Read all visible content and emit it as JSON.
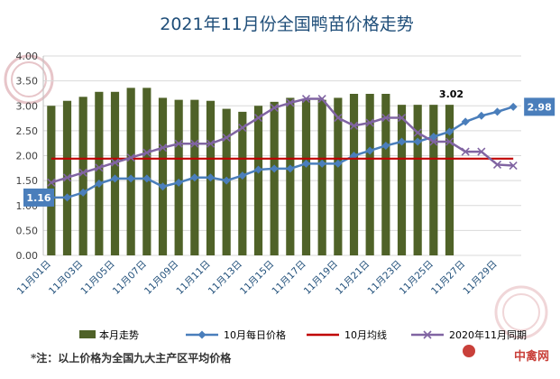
{
  "chart_data": {
    "type": "bar+line",
    "title": "2021年11月份全国鸭苗价格走势",
    "categories": [
      "11月01日",
      "11月02日",
      "11月03日",
      "11月04日",
      "11月05日",
      "11月06日",
      "11月07日",
      "11月08日",
      "11月09日",
      "11月10日",
      "11月11日",
      "11月12日",
      "11月13日",
      "11月14日",
      "11月15日",
      "11月16日",
      "11月17日",
      "11月18日",
      "11月19日",
      "11月20日",
      "11月21日",
      "11月22日",
      "11月23日",
      "11月24日",
      "11月25日",
      "11月26日",
      "11月27日",
      "11月28日",
      "11月29日",
      "11月30日"
    ],
    "x_tick_labels": [
      "11月01日",
      "11月03日",
      "11月05日",
      "11月07日",
      "11月09日",
      "11月11日",
      "11月13日",
      "11月15日",
      "11月17日",
      "11月19日",
      "11月21日",
      "11月23日",
      "11月25日",
      "11月27日",
      "11月29日"
    ],
    "ylim": [
      0,
      4
    ],
    "y_ticks": [
      "0.00",
      "0.50",
      "1.00",
      "1.50",
      "2.00",
      "2.50",
      "3.00",
      "3.50",
      "4.00"
    ],
    "grid": true,
    "legend_position": "bottom",
    "series": [
      {
        "name": "本月走势",
        "kind": "bar",
        "color": "#4f6228",
        "values": [
          3.0,
          3.1,
          3.18,
          3.28,
          3.28,
          3.36,
          3.36,
          3.16,
          3.12,
          3.12,
          3.1,
          2.94,
          2.88,
          3.0,
          3.08,
          3.16,
          3.12,
          3.12,
          3.16,
          3.24,
          3.24,
          3.24,
          3.02,
          3.02,
          3.02,
          3.02,
          null,
          null,
          null,
          null
        ]
      },
      {
        "name": "10月每日价格",
        "kind": "line",
        "marker": "diamond",
        "color": "#4a7ebb",
        "values": [
          1.16,
          1.16,
          1.26,
          1.44,
          1.54,
          1.54,
          1.54,
          1.38,
          1.46,
          1.56,
          1.56,
          1.5,
          1.6,
          1.72,
          1.74,
          1.74,
          1.84,
          1.84,
          1.84,
          2.0,
          2.1,
          2.2,
          2.28,
          2.28,
          2.38,
          2.48,
          2.68,
          2.8,
          2.88,
          2.98
        ]
      },
      {
        "name": "10月均线",
        "kind": "line",
        "color": "#c00000",
        "values": [
          1.94,
          1.94,
          1.94,
          1.94,
          1.94,
          1.94,
          1.94,
          1.94,
          1.94,
          1.94,
          1.94,
          1.94,
          1.94,
          1.94,
          1.94,
          1.94,
          1.94,
          1.94,
          1.94,
          1.94,
          1.94,
          1.94,
          1.94,
          1.94,
          1.94,
          1.94,
          1.94,
          1.94,
          1.94,
          1.94
        ]
      },
      {
        "name": "2020年11月同期",
        "kind": "line",
        "marker": "x",
        "color": "#8064a2",
        "values": [
          1.46,
          1.56,
          1.66,
          1.76,
          1.86,
          1.96,
          2.06,
          2.16,
          2.24,
          2.24,
          2.24,
          2.36,
          2.56,
          2.76,
          2.96,
          3.06,
          3.14,
          3.14,
          2.76,
          2.6,
          2.66,
          2.76,
          2.76,
          2.46,
          2.28,
          2.28,
          2.08,
          2.08,
          1.82,
          1.8
        ]
      }
    ],
    "annotations": [
      {
        "text": "1.16",
        "style": "callout",
        "series": 1,
        "index": 0,
        "color": "#4a7ebb"
      },
      {
        "text": "2.98",
        "style": "callout",
        "series": 1,
        "index": 29,
        "color": "#4a7ebb"
      },
      {
        "text": "3.02",
        "style": "label",
        "series": 0,
        "index": 25
      }
    ]
  },
  "footnote": "*注：以上价格为全国九大主产区平均价格",
  "watermark": "中禽网"
}
